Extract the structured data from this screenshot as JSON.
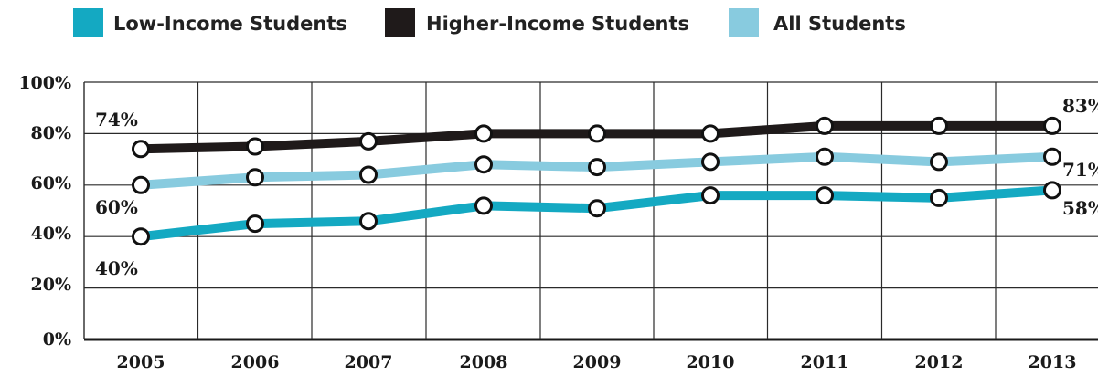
{
  "chart_data": {
    "type": "line",
    "x": [
      "2005",
      "2006",
      "2007",
      "2008",
      "2009",
      "2010",
      "2011",
      "2012",
      "2013"
    ],
    "ylim": [
      0,
      100
    ],
    "ytick_labels": [
      "100%",
      "80%",
      "60%",
      "40%",
      "20%",
      "0%"
    ],
    "grid": true,
    "legend_position": "top",
    "series": [
      {
        "name": "Low-Income Students",
        "color": "#14a9c2",
        "values": [
          40,
          45,
          46,
          52,
          51,
          56,
          56,
          55,
          58
        ]
      },
      {
        "name": "Higher-Income Students",
        "color": "#1f1a1a",
        "values": [
          74,
          75,
          77,
          80,
          80,
          80,
          83,
          83,
          83
        ]
      },
      {
        "name": "All Students",
        "color": "#88cbdf",
        "values": [
          60,
          63,
          64,
          68,
          67,
          69,
          71,
          69,
          71
        ]
      }
    ],
    "data_labels": {
      "low_start": "40%",
      "low_end": "58%",
      "high_start": "74%",
      "high_end": "83%",
      "all_start": "60%",
      "all_end": "71%"
    }
  }
}
